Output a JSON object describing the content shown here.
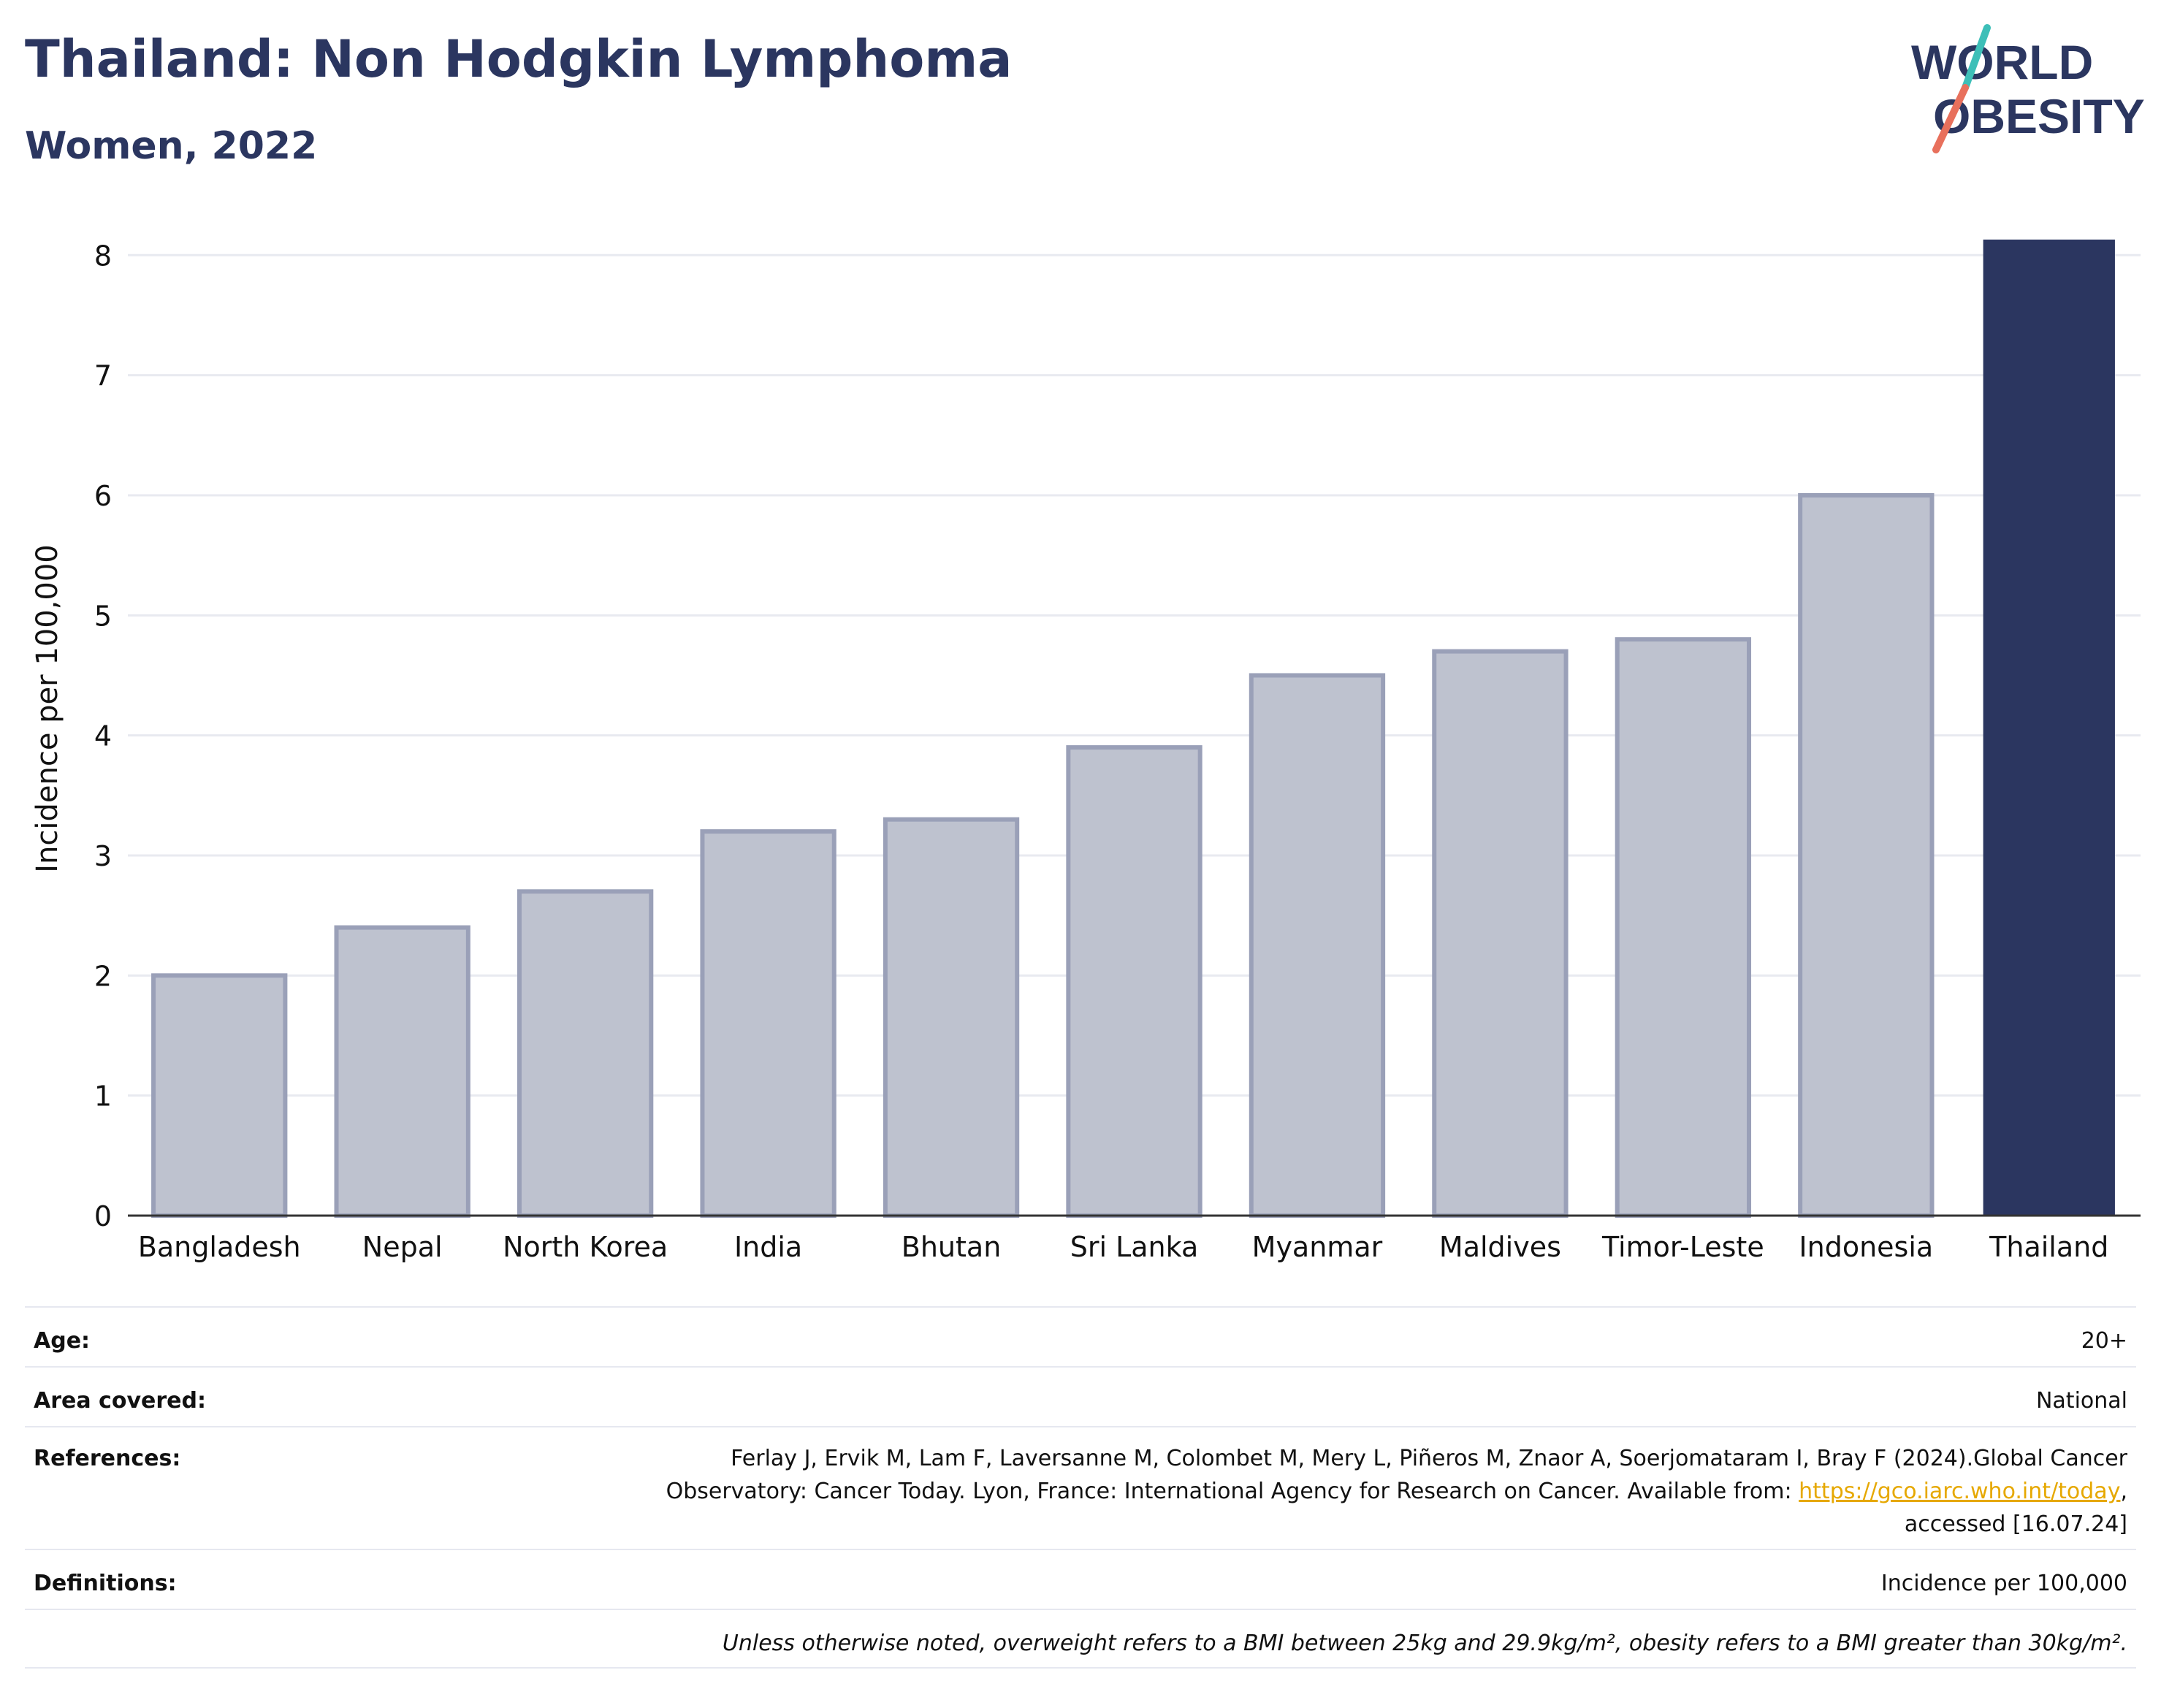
{
  "header": {
    "title": "Thailand: Non Hodgkin Lymphoma",
    "subtitle": "Women, 2022"
  },
  "logo": {
    "line1": "WORLD",
    "line2": "OBESITY",
    "colors": {
      "text": "#2b3660",
      "slash_teal": "#3dbfb8",
      "slash_red": "#e8705c"
    }
  },
  "chart_data": {
    "type": "bar",
    "categories": [
      "Bangladesh",
      "Nepal",
      "North Korea",
      "India",
      "Bhutan",
      "Sri Lanka",
      "Myanmar",
      "Maldives",
      "Timor-Leste",
      "Indonesia",
      "Thailand"
    ],
    "values": [
      2.0,
      2.4,
      2.7,
      3.2,
      3.3,
      3.9,
      4.5,
      4.7,
      4.8,
      6.0,
      8.13
    ],
    "highlight": "Thailand",
    "ylabel": "Incidence per 100,000",
    "xlabel": "",
    "ylim": [
      0,
      8.3
    ],
    "yticks": [
      0,
      1,
      2,
      3,
      4,
      5,
      6,
      7,
      8
    ],
    "grid": true,
    "colors": {
      "bar": "#bec2cf",
      "bar_stroke": "#9aa0b8",
      "highlight": "#2b3660",
      "grid": "#e8eaf0",
      "axis": "#333333"
    }
  },
  "info": {
    "age_label": "Age:",
    "age_value": "20+",
    "area_label": "Area covered:",
    "area_value": "National",
    "references_label": "References:",
    "references_line1": "Ferlay J, Ervik M, Lam F, Laversanne M, Colombet M, Mery L, Piñeros M, Znaor A, Soerjomataram I, Bray F (2024).Global Cancer",
    "references_line2_pre": "Observatory: Cancer Today. Lyon, France: International Agency for Research on Cancer. Available from: ",
    "references_link": "https://gco.iarc.who.int/today",
    "references_line2_post": ",",
    "references_line3": "accessed [16.07.24]",
    "definitions_label": "Definitions:",
    "definitions_value": "Incidence per 100,000",
    "note": "Unless otherwise noted, overweight refers to a BMI between 25kg and 29.9kg/m², obesity refers to a BMI greater than 30kg/m²."
  }
}
